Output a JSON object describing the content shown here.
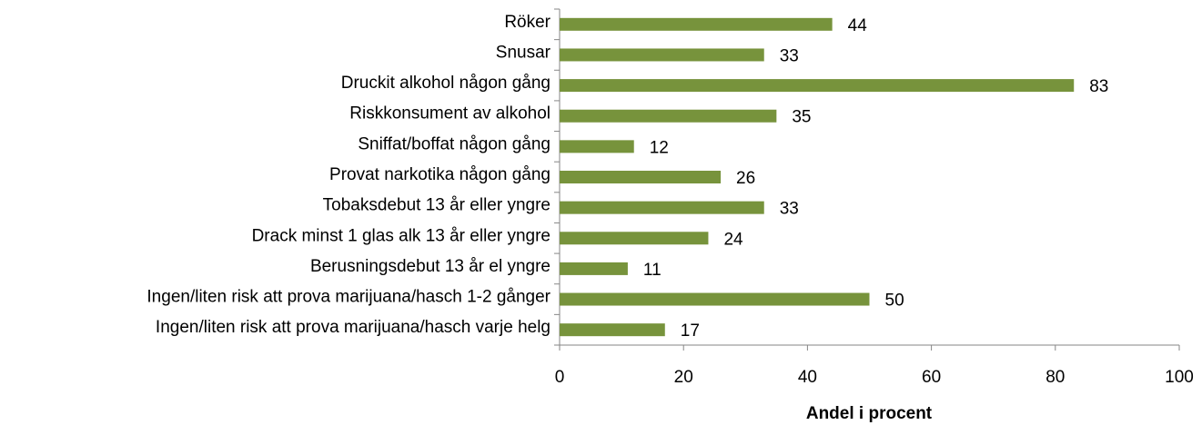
{
  "chart_data": {
    "type": "bar",
    "orientation": "horizontal",
    "x_label": "Andel i procent",
    "categories": [
      "Röker",
      "Snusar",
      "Druckit alkohol någon gång",
      "Riskkonsument av alkohol",
      "Sniffat/boffat någon gång",
      "Provat narkotika någon gång",
      "Tobaksdebut 13 år eller yngre",
      "Drack minst 1 glas alk 13 år eller yngre",
      "Berusningsdebut 13 år el yngre",
      "Ingen/liten risk att prova marijuana/hasch 1-2 gånger",
      "Ingen/liten risk att prova marijuana/hasch varje helg"
    ],
    "values": [
      44,
      33,
      83,
      35,
      12,
      26,
      33,
      24,
      11,
      50,
      17
    ],
    "color": "#77933c",
    "xlim": [
      0,
      100
    ],
    "xticks": [
      0,
      20,
      40,
      60,
      80,
      100
    ],
    "grid": false
  }
}
